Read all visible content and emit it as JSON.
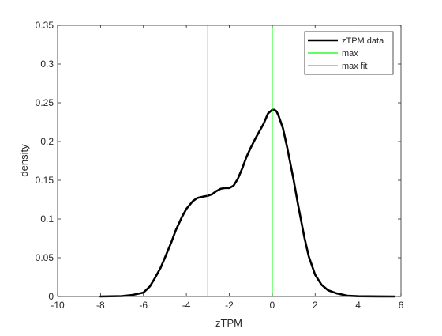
{
  "chart_data": {
    "type": "line",
    "title": "",
    "xlabel": "zTPM",
    "ylabel": "density",
    "xlim": [
      -10,
      6
    ],
    "ylim": [
      0,
      0.35
    ],
    "xticks": [
      -10,
      -8,
      -6,
      -4,
      -2,
      0,
      2,
      4,
      6
    ],
    "yticks": [
      0,
      0.05,
      0.1,
      0.15,
      0.2,
      0.25,
      0.3,
      0.35
    ],
    "xtick_labels": [
      "-10",
      "-8",
      "-6",
      "-4",
      "-2",
      "0",
      "2",
      "4",
      "6"
    ],
    "ytick_labels": [
      "0",
      "0.05",
      "0.1",
      "0.15",
      "0.2",
      "0.25",
      "0.3",
      "0.35"
    ],
    "grid": false,
    "legend_position": "top-right",
    "series": [
      {
        "name": "zTPM data",
        "color": "#000000",
        "x": [
          -8.0,
          -7.0,
          -6.5,
          -6.0,
          -5.7,
          -5.5,
          -5.2,
          -5.0,
          -4.7,
          -4.5,
          -4.2,
          -4.0,
          -3.7,
          -3.5,
          -3.2,
          -3.0,
          -2.8,
          -2.6,
          -2.4,
          -2.2,
          -2.0,
          -1.8,
          -1.6,
          -1.4,
          -1.2,
          -1.0,
          -0.8,
          -0.6,
          -0.4,
          -0.2,
          0.0,
          0.1,
          0.2,
          0.3,
          0.5,
          0.7,
          1.0,
          1.2,
          1.5,
          1.7,
          2.0,
          2.3,
          2.6,
          3.0,
          3.5,
          4.0,
          5.0,
          5.7
        ],
        "y": [
          0.0,
          0.0005,
          0.002,
          0.005,
          0.013,
          0.022,
          0.037,
          0.05,
          0.07,
          0.085,
          0.103,
          0.113,
          0.123,
          0.127,
          0.129,
          0.13,
          0.132,
          0.136,
          0.139,
          0.14,
          0.14,
          0.143,
          0.152,
          0.165,
          0.18,
          0.192,
          0.203,
          0.213,
          0.223,
          0.236,
          0.241,
          0.241,
          0.239,
          0.233,
          0.217,
          0.192,
          0.15,
          0.119,
          0.076,
          0.052,
          0.028,
          0.015,
          0.008,
          0.004,
          0.001,
          0.0003,
          0.0001,
          0.0
        ]
      },
      {
        "name": "max",
        "color": "#00ff00",
        "x": [
          -3.0,
          -3.0
        ],
        "y": [
          0,
          0.35
        ]
      },
      {
        "name": "max fit",
        "color": "#00ff00",
        "x": [
          0.0,
          0.0
        ],
        "y": [
          0,
          0.35
        ]
      }
    ]
  }
}
